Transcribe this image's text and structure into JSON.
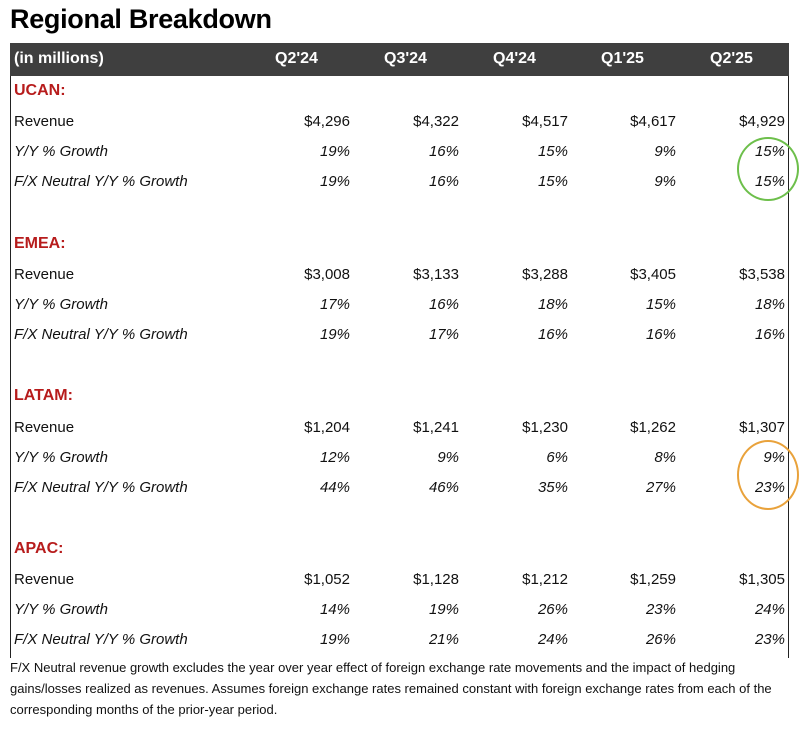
{
  "title": "Regional Breakdown",
  "header": {
    "unit_label": "(in millions)",
    "columns": [
      "Q2'24",
      "Q3'24",
      "Q4'24",
      "Q1'25",
      "Q2'25"
    ]
  },
  "sections": [
    {
      "name": "UCAN:",
      "revenue_label": "Revenue",
      "revenue": [
        "$4,296",
        "$4,322",
        "$4,517",
        "$4,617",
        "$4,929"
      ],
      "growth_label": "Y/Y % Growth",
      "growth": [
        "19%",
        "16%",
        "15%",
        "9%",
        "15%"
      ],
      "fx_label": "F/X Neutral Y/Y % Growth",
      "fx": [
        "19%",
        "16%",
        "15%",
        "9%",
        "15%"
      ]
    },
    {
      "name": "EMEA:",
      "revenue_label": "Revenue",
      "revenue": [
        "$3,008",
        "$3,133",
        "$3,288",
        "$3,405",
        "$3,538"
      ],
      "growth_label": "Y/Y % Growth",
      "growth": [
        "17%",
        "16%",
        "18%",
        "15%",
        "18%"
      ],
      "fx_label": "F/X Neutral Y/Y % Growth",
      "fx": [
        "19%",
        "17%",
        "16%",
        "16%",
        "16%"
      ]
    },
    {
      "name": "LATAM:",
      "revenue_label": "Revenue",
      "revenue": [
        "$1,204",
        "$1,241",
        "$1,230",
        "$1,262",
        "$1,307"
      ],
      "growth_label": "Y/Y % Growth",
      "growth": [
        "12%",
        "9%",
        "6%",
        "8%",
        "9%"
      ],
      "fx_label": "F/X Neutral Y/Y % Growth",
      "fx": [
        "44%",
        "46%",
        "35%",
        "27%",
        "23%"
      ]
    },
    {
      "name": "APAC:",
      "revenue_label": "Revenue",
      "revenue": [
        "$1,052",
        "$1,128",
        "$1,212",
        "$1,259",
        "$1,305"
      ],
      "growth_label": "Y/Y % Growth",
      "growth": [
        "14%",
        "19%",
        "26%",
        "23%",
        "24%"
      ],
      "fx_label": "F/X Neutral Y/Y % Growth",
      "fx": [
        "19%",
        "21%",
        "24%",
        "26%",
        "23%"
      ]
    }
  ],
  "footnote": "F/X Neutral revenue growth excludes the year over year effect of foreign exchange rate movements and the impact of hedging gains/losses realized as revenues. Assumes foreign exchange rates remained constant with foreign exchange rates from each of the corresponding months of the prior-year period.",
  "highlights": {
    "ucan_q2_25_color": "#6dbf4b",
    "latam_q2_25_color": "#e9a23b"
  }
}
